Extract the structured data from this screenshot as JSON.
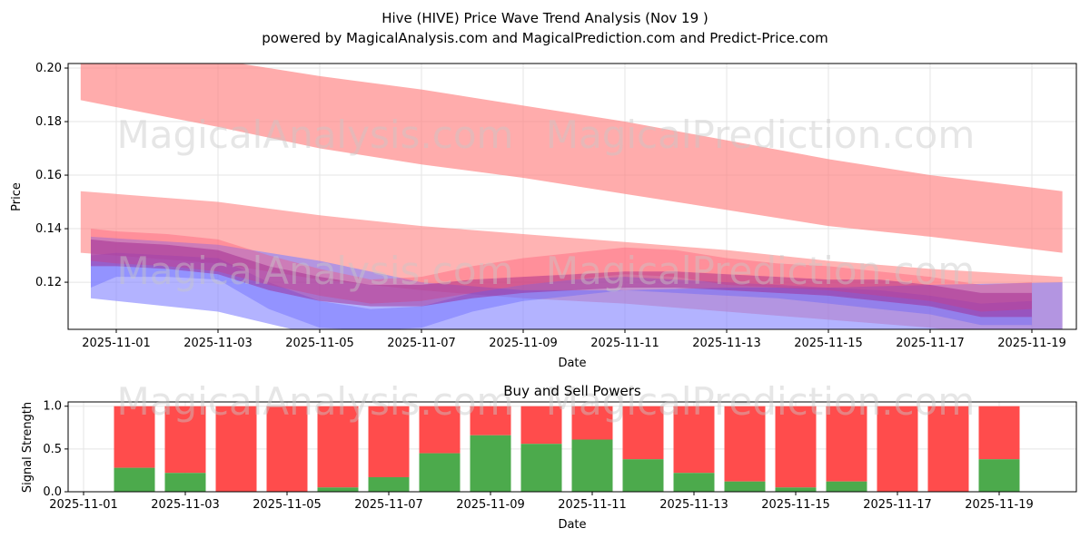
{
  "chart_data": [
    {
      "type": "area",
      "title": "Hive (HIVE) Price Wave Trend Analysis (Nov 19 )",
      "subtitle": "powered by MagicalAnalysis.com and MagicalPrediction.com and Predict-Price.com",
      "xlabel": "Date",
      "ylabel": "Price",
      "ylim": [
        0.1024,
        0.2017
      ],
      "xlim_days_from_nov01": [
        -0.95,
        18.9
      ],
      "grid": true,
      "watermarks": [
        "MagicalAnalysis.com",
        "MagicalPrediction.com"
      ],
      "x_ticks": [
        "2025-11-01",
        "2025-11-03",
        "2025-11-05",
        "2025-11-07",
        "2025-11-09",
        "2025-11-11",
        "2025-11-13",
        "2025-11-15",
        "2025-11-17",
        "2025-11-19"
      ],
      "y_ticks": [
        "0.12",
        "0.14",
        "0.16",
        "0.18",
        "0.20"
      ],
      "colors": {
        "red": "#ff6b6b",
        "blue": "#6b6bff",
        "purple": "#a0308a"
      },
      "bands": [
        {
          "name": "upper-red-band",
          "color": "#ff8080",
          "opacity": 0.65,
          "x": [
            -0.7,
            2,
            4,
            6,
            8,
            10,
            12,
            14,
            16,
            18.6
          ],
          "upper": [
            0.207,
            0.203,
            0.197,
            0.192,
            0.186,
            0.18,
            0.173,
            0.166,
            0.16,
            0.154
          ],
          "lower": [
            0.188,
            0.178,
            0.17,
            0.164,
            0.159,
            0.153,
            0.147,
            0.141,
            0.137,
            0.131
          ]
        },
        {
          "name": "middle-red-band",
          "color": "#ff8080",
          "opacity": 0.6,
          "x": [
            -0.7,
            2,
            4,
            6,
            8,
            10,
            12,
            14,
            16,
            18.6
          ],
          "upper": [
            0.154,
            0.15,
            0.145,
            0.141,
            0.138,
            0.135,
            0.132,
            0.128,
            0.125,
            0.122
          ],
          "lower": [
            0.131,
            0.127,
            0.121,
            0.117,
            0.114,
            0.112,
            0.109,
            0.106,
            0.103,
            0.098
          ]
        },
        {
          "name": "lower-blue-band",
          "color": "#8080ff",
          "opacity": 0.6,
          "x": [
            -0.5,
            2,
            4,
            6,
            8,
            10,
            12,
            14,
            16,
            18.6
          ],
          "upper": [
            0.137,
            0.134,
            0.128,
            0.12,
            0.117,
            0.117,
            0.118,
            0.118,
            0.119,
            0.12
          ],
          "lower": [
            0.114,
            0.109,
            0.1,
            0.098,
            0.098,
            0.096,
            0.094,
            0.092,
            0.09,
            0.088
          ]
        },
        {
          "name": "blue-wave-band",
          "color": "#5a5aff",
          "opacity": 0.35,
          "x": [
            -0.5,
            0,
            1,
            2,
            3,
            4,
            5,
            6,
            7,
            8,
            9,
            10,
            11,
            12,
            13,
            14,
            15,
            16,
            17,
            18
          ],
          "upper": [
            0.13,
            0.131,
            0.13,
            0.129,
            0.12,
            0.113,
            0.11,
            0.111,
            0.116,
            0.119,
            0.121,
            0.122,
            0.121,
            0.12,
            0.119,
            0.118,
            0.117,
            0.115,
            0.112,
            0.113
          ],
          "lower": [
            0.118,
            0.122,
            0.122,
            0.121,
            0.11,
            0.103,
            0.102,
            0.103,
            0.109,
            0.113,
            0.115,
            0.117,
            0.116,
            0.115,
            0.114,
            0.112,
            0.11,
            0.108,
            0.104,
            0.104
          ]
        },
        {
          "name": "red-wave-band",
          "color": "#ff4d6d",
          "opacity": 0.35,
          "x": [
            -0.5,
            0,
            1,
            2,
            3,
            4,
            5,
            6,
            7,
            8,
            9,
            10,
            11,
            12,
            13,
            14,
            15,
            16,
            17,
            18
          ],
          "upper": [
            0.14,
            0.139,
            0.138,
            0.136,
            0.13,
            0.125,
            0.121,
            0.122,
            0.126,
            0.129,
            0.131,
            0.133,
            0.132,
            0.129,
            0.127,
            0.126,
            0.124,
            0.122,
            0.119,
            0.12
          ],
          "lower": [
            0.128,
            0.127,
            0.126,
            0.124,
            0.119,
            0.115,
            0.112,
            0.113,
            0.116,
            0.119,
            0.121,
            0.123,
            0.122,
            0.119,
            0.118,
            0.117,
            0.115,
            0.113,
            0.109,
            0.11
          ]
        },
        {
          "name": "purple-wave-band",
          "color": "#a0208a",
          "opacity": 0.45,
          "x": [
            -0.5,
            0,
            1,
            2,
            3,
            4,
            5,
            6,
            7,
            8,
            9,
            10,
            11,
            12,
            13,
            14,
            15,
            16,
            17,
            18
          ],
          "upper": [
            0.136,
            0.135,
            0.134,
            0.132,
            0.126,
            0.122,
            0.119,
            0.119,
            0.121,
            0.122,
            0.123,
            0.124,
            0.124,
            0.123,
            0.122,
            0.121,
            0.121,
            0.119,
            0.116,
            0.116
          ],
          "lower": [
            0.126,
            0.126,
            0.125,
            0.123,
            0.117,
            0.113,
            0.111,
            0.111,
            0.114,
            0.116,
            0.117,
            0.118,
            0.118,
            0.117,
            0.116,
            0.115,
            0.113,
            0.111,
            0.107,
            0.107
          ]
        }
      ]
    },
    {
      "type": "bar",
      "title": "Buy and Sell Powers",
      "xlabel": "Date",
      "ylabel": "Signal Strength",
      "ylim": [
        0,
        1.05
      ],
      "y_ticks": [
        "0.0",
        "0.5",
        "1.0"
      ],
      "x_ticks": [
        "2025-11-01",
        "2025-11-03",
        "2025-11-05",
        "2025-11-07",
        "2025-11-09",
        "2025-11-11",
        "2025-11-13",
        "2025-11-15",
        "2025-11-17",
        "2025-11-19"
      ],
      "categories": [
        "2025-11-02",
        "2025-11-03",
        "2025-11-04",
        "2025-11-05",
        "2025-11-06",
        "2025-11-07",
        "2025-11-08",
        "2025-11-09",
        "2025-11-10",
        "2025-11-11",
        "2025-11-12",
        "2025-11-13",
        "2025-11-14",
        "2025-11-15",
        "2025-11-16",
        "2025-11-17",
        "2025-11-18",
        "2025-11-19"
      ],
      "series": [
        {
          "name": "Buy",
          "color": "#4caa4c",
          "values": [
            0.28,
            0.22,
            0,
            0,
            0.05,
            0.17,
            0.45,
            0.66,
            0.56,
            0.61,
            0.38,
            0.22,
            0.12,
            0.05,
            0.12,
            0,
            0,
            0.38
          ]
        },
        {
          "name": "Sell",
          "color": "#ff4c4c",
          "values": [
            0.72,
            0.78,
            1,
            1,
            0.95,
            0.83,
            0.55,
            0.34,
            0.44,
            0.39,
            0.62,
            0.78,
            0.88,
            0.95,
            0.88,
            1,
            1,
            0.62
          ]
        }
      ]
    }
  ]
}
